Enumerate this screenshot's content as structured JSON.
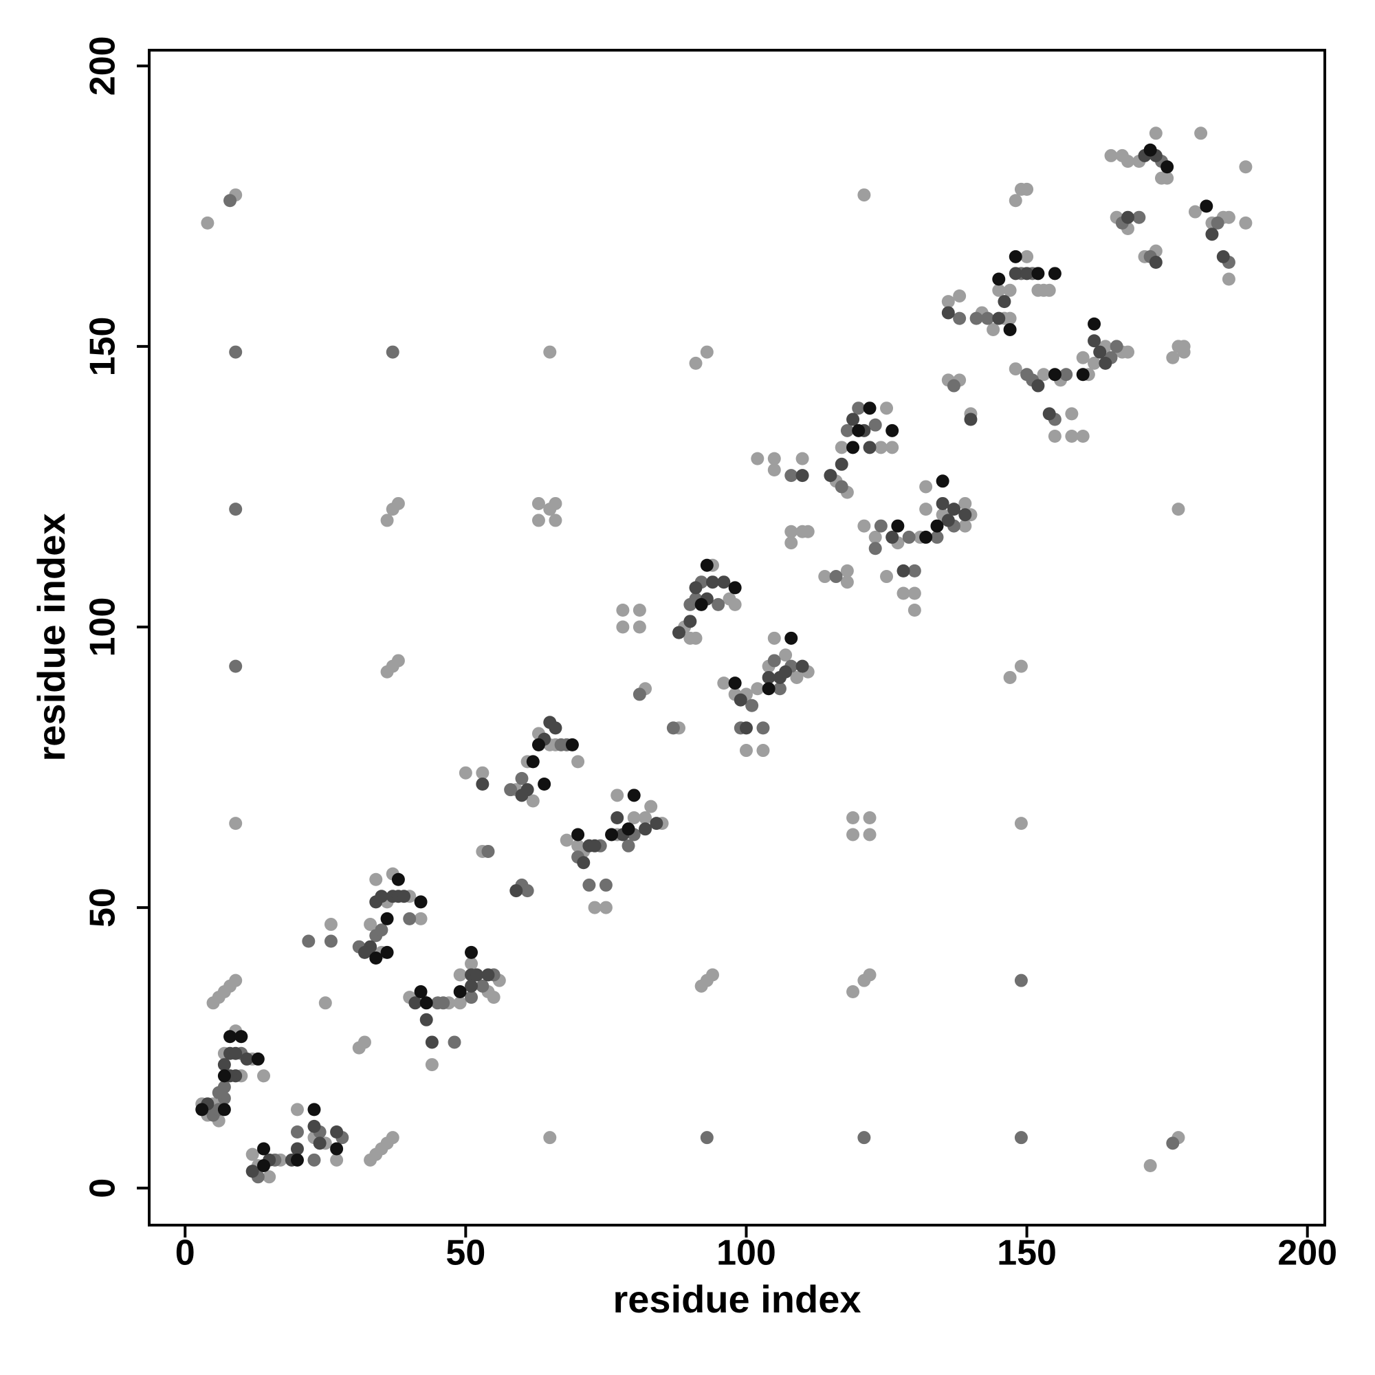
{
  "chart_data": {
    "type": "scatter",
    "xlabel": "residue index",
    "ylabel": "residue index",
    "xlim": [
      -6.4,
      203.1
    ],
    "ylim": [
      -6.6,
      202.8
    ],
    "xticks": [
      0,
      50,
      100,
      150,
      200
    ],
    "yticks": [
      0,
      50,
      100,
      150,
      200
    ],
    "series": [
      {
        "color": "#9e9e9e",
        "x": [
          4,
          9,
          65,
          91,
          93,
          36,
          37,
          38,
          63,
          65,
          66,
          63,
          66,
          36,
          37,
          38,
          9,
          119,
          122,
          119,
          122,
          149,
          147,
          149,
          177,
          121,
          5,
          6,
          7,
          8,
          9,
          33,
          34,
          35,
          36,
          37,
          65,
          172,
          177,
          92,
          93,
          94,
          119,
          121,
          122,
          3,
          4,
          6,
          5,
          10,
          12,
          14,
          9,
          7,
          12,
          13,
          15,
          17,
          20,
          23,
          25,
          27,
          33,
          34,
          35,
          36,
          37,
          40,
          42,
          25,
          26,
          31,
          32,
          40,
          42,
          47,
          49,
          49,
          51,
          54,
          56,
          55,
          44,
          50,
          53,
          53,
          59,
          61,
          62,
          63,
          65,
          66,
          70,
          68,
          70,
          71,
          73,
          75,
          77,
          77,
          80,
          82,
          83,
          85,
          78,
          78,
          81,
          81,
          82,
          88,
          89,
          90,
          91,
          94,
          97,
          98,
          96,
          98,
          100,
          100,
          102,
          103,
          104,
          105,
          107,
          109,
          111,
          102,
          105,
          105,
          108,
          108,
          110,
          111,
          110,
          116,
          117,
          118,
          118,
          114,
          118,
          124,
          125,
          126,
          121,
          123,
          125,
          127,
          128,
          130,
          130,
          131,
          132,
          132,
          135,
          139,
          140,
          139,
          136,
          136,
          138,
          140,
          138,
          142,
          144,
          145,
          146,
          147,
          147,
          149,
          148,
          150,
          150,
          152,
          153,
          154,
          148,
          153,
          155,
          156,
          158,
          158,
          160,
          161,
          162,
          164,
          167,
          168,
          160,
          165,
          167,
          168,
          166,
          168,
          171,
          173,
          170,
          173,
          174,
          176,
          177,
          178,
          178,
          181,
          183,
          185,
          186,
          186,
          189,
          189,
          180,
          175
        ],
        "values": [
          172,
          177,
          149,
          147,
          149,
          119,
          121,
          122,
          122,
          121,
          122,
          119,
          119,
          92,
          93,
          94,
          65,
          66,
          66,
          63,
          63,
          65,
          91,
          93,
          121,
          177,
          33,
          34,
          35,
          36,
          37,
          5,
          6,
          7,
          8,
          9,
          9,
          4,
          9,
          36,
          37,
          38,
          35,
          37,
          38,
          15,
          13,
          12,
          15,
          20,
          23,
          20,
          28,
          24,
          6,
          4,
          2,
          5,
          14,
          9,
          8,
          5,
          47,
          55,
          42,
          51,
          56,
          52,
          48,
          33,
          47,
          25,
          26,
          34,
          34,
          33,
          33,
          38,
          40,
          35,
          37,
          34,
          22,
          74,
          74,
          60,
          71,
          76,
          69,
          81,
          79,
          79,
          76,
          62,
          61,
          60,
          50,
          50,
          70,
          63,
          66,
          66,
          68,
          65,
          103,
          100,
          103,
          100,
          89,
          82,
          100,
          98,
          98,
          111,
          105,
          104,
          90,
          88,
          88,
          78,
          89,
          78,
          93,
          98,
          95,
          91,
          92,
          130,
          130,
          128,
          115,
          117,
          117,
          117,
          130,
          126,
          132,
          110,
          108,
          109,
          124,
          132,
          139,
          132,
          118,
          116,
          109,
          115,
          106,
          106,
          103,
          116,
          121,
          125,
          120,
          122,
          120,
          118,
          158,
          144,
          144,
          138,
          159,
          156,
          153,
          160,
          155,
          155,
          160,
          178,
          176,
          178,
          166,
          160,
          160,
          160,
          146,
          145,
          134,
          144,
          134,
          138,
          134,
          145,
          147,
          150,
          149,
          149,
          148,
          184,
          184,
          183,
          173,
          171,
          166,
          167,
          183,
          188,
          180,
          148,
          150,
          149,
          150,
          188,
          172,
          173,
          173,
          162,
          172,
          182,
          174,
          180
        ]
      },
      {
        "color": "#6f6f6f",
        "x": [
          5,
          6,
          7,
          7,
          6,
          10,
          13,
          16,
          23,
          24,
          28,
          20,
          34,
          35,
          40,
          31,
          22,
          26,
          45,
          46,
          51,
          53,
          55,
          48,
          58,
          60,
          67,
          68,
          54,
          60,
          61,
          70,
          72,
          74,
          79,
          80,
          75,
          90,
          91,
          92,
          95,
          81,
          87,
          101,
          105,
          106,
          108,
          99,
          103,
          117,
          118,
          120,
          123,
          108,
          116,
          123,
          124,
          129,
          134,
          130,
          137,
          141,
          143,
          149,
          151,
          138,
          137,
          150,
          151,
          157,
          165,
          166,
          155,
          167,
          170,
          172,
          174,
          184,
          186,
          8,
          9,
          37,
          9,
          9,
          93,
          121,
          149,
          149,
          176
        ],
        "values": [
          13,
          14,
          16,
          18,
          17,
          24,
          2,
          5,
          5,
          10,
          9,
          10,
          45,
          46,
          48,
          43,
          44,
          44,
          33,
          33,
          34,
          36,
          38,
          26,
          71,
          73,
          79,
          79,
          60,
          54,
          53,
          59,
          54,
          61,
          61,
          63,
          54,
          104,
          105,
          108,
          104,
          88,
          82,
          86,
          94,
          89,
          93,
          82,
          82,
          125,
          135,
          139,
          136,
          127,
          109,
          114,
          118,
          116,
          116,
          110,
          118,
          155,
          155,
          163,
          163,
          155,
          143,
          145,
          144,
          145,
          148,
          150,
          137,
          172,
          173,
          166,
          183,
          172,
          165,
          176,
          149,
          149,
          121,
          93,
          9,
          9,
          9,
          37,
          8
        ]
      },
      {
        "color": "#474747",
        "x": [
          8,
          9,
          9,
          7,
          8,
          11,
          4,
          15,
          20,
          23,
          24,
          12,
          27,
          19,
          33,
          35,
          37,
          38,
          34,
          39,
          32,
          41,
          51,
          51,
          52,
          54,
          43,
          44,
          65,
          64,
          66,
          61,
          60,
          53,
          59,
          71,
          72,
          77,
          78,
          82,
          73,
          84,
          91,
          93,
          94,
          96,
          90,
          88,
          99,
          106,
          107,
          104,
          110,
          100,
          117,
          121,
          122,
          119,
          115,
          110,
          135,
          136,
          137,
          139,
          128,
          126,
          148,
          146,
          150,
          145,
          136,
          140,
          162,
          163,
          164,
          154,
          152,
          171,
          173,
          168,
          183,
          185,
          173
        ],
        "values": [
          24,
          24,
          20,
          22,
          20,
          23,
          15,
          5,
          7,
          11,
          8,
          3,
          10,
          5,
          43,
          52,
          52,
          52,
          51,
          52,
          42,
          33,
          38,
          36,
          38,
          38,
          30,
          26,
          83,
          80,
          82,
          71,
          70,
          72,
          53,
          58,
          61,
          66,
          63,
          64,
          61,
          65,
          107,
          105,
          108,
          108,
          101,
          99,
          87,
          91,
          92,
          91,
          93,
          82,
          129,
          135,
          132,
          137,
          127,
          127,
          122,
          119,
          121,
          120,
          110,
          116,
          163,
          158,
          163,
          155,
          156,
          137,
          151,
          149,
          147,
          138,
          143,
          184,
          184,
          173,
          170,
          166,
          165
        ]
      },
      {
        "color": "#111111",
        "x": [
          7,
          8,
          10,
          13,
          7,
          3,
          14,
          20,
          23,
          27,
          14,
          36,
          38,
          42,
          36,
          34,
          42,
          51,
          49,
          43,
          69,
          64,
          63,
          62,
          70,
          80,
          76,
          79,
          98,
          92,
          93,
          104,
          108,
          98,
          126,
          119,
          120,
          122,
          135,
          132,
          127,
          134,
          145,
          148,
          155,
          147,
          152,
          155,
          162,
          160,
          175,
          182,
          172
        ],
        "values": [
          20,
          27,
          27,
          23,
          14,
          14,
          7,
          5,
          14,
          7,
          4,
          48,
          55,
          51,
          42,
          41,
          35,
          42,
          35,
          33,
          79,
          72,
          79,
          76,
          63,
          70,
          63,
          64,
          107,
          104,
          111,
          89,
          98,
          90,
          135,
          132,
          135,
          139,
          126,
          116,
          118,
          118,
          162,
          166,
          163,
          153,
          163,
          145,
          154,
          145,
          182,
          175,
          185
        ]
      }
    ]
  }
}
